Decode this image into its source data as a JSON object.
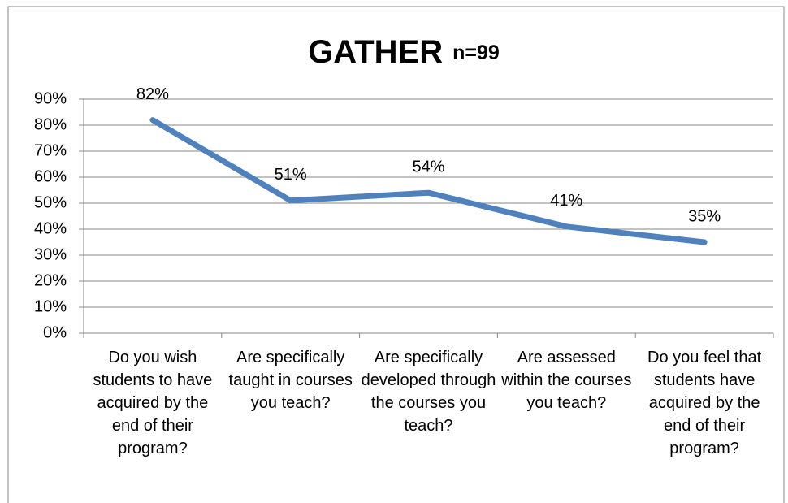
{
  "chart_data": {
    "type": "line",
    "title": "GATHER",
    "subtitle": "n=99",
    "categories": [
      "Do you wish students to have acquired by the end of their program?",
      "Are specifically taught in courses you teach?",
      "Are specifically developed through the courses you teach?",
      "Are assessed within the courses you teach?",
      "Do you feel that students have acquired by the end of their program?"
    ],
    "values": [
      82,
      51,
      54,
      41,
      35
    ],
    "value_labels": [
      "82%",
      "51%",
      "54%",
      "41%",
      "35%"
    ],
    "color": "#4f81bd",
    "ylim": [
      0,
      90
    ],
    "yticks": [
      {
        "value": 0,
        "label": "0%"
      },
      {
        "value": 10,
        "label": "10%"
      },
      {
        "value": 20,
        "label": "20%"
      },
      {
        "value": 30,
        "label": "30%"
      },
      {
        "value": 40,
        "label": "40%"
      },
      {
        "value": 50,
        "label": "50%"
      },
      {
        "value": 60,
        "label": "60%"
      },
      {
        "value": 70,
        "label": "70%"
      },
      {
        "value": 80,
        "label": "80%"
      },
      {
        "value": 90,
        "label": "90%"
      }
    ],
    "grid": true
  }
}
